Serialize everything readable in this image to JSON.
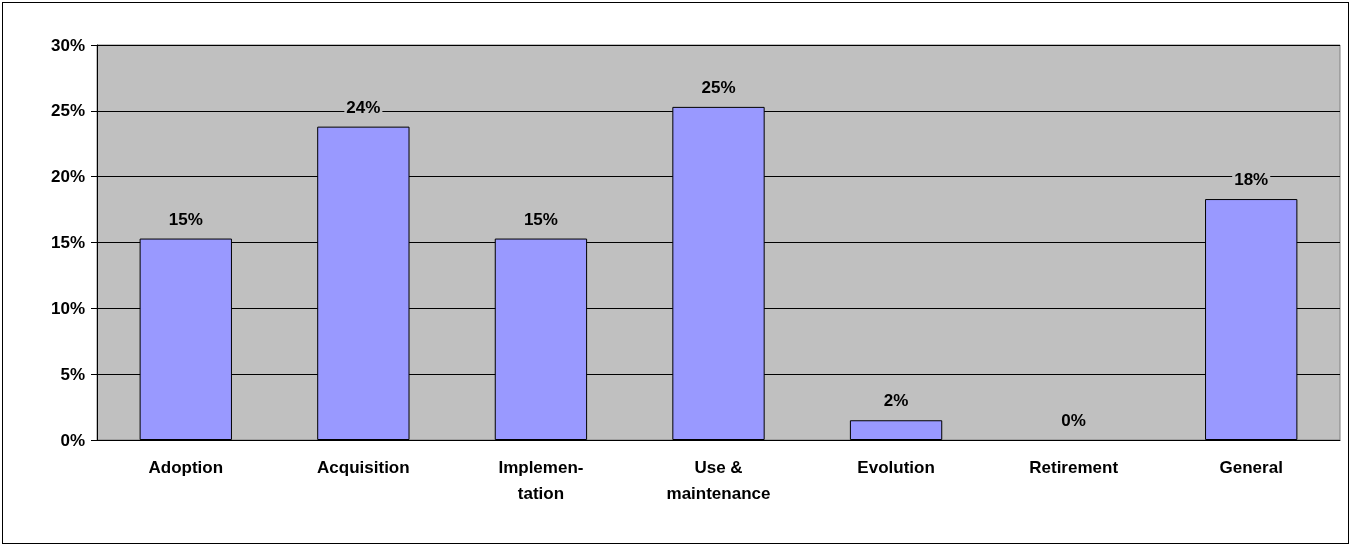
{
  "chart_data": {
    "type": "bar",
    "categories": [
      "Adoption",
      "Acquisition",
      "Implemen-\ntation",
      "Use &\nmaintenance",
      "Evolution",
      "Retirement",
      "General"
    ],
    "values": [
      15.3,
      23.8,
      15.3,
      25.3,
      1.5,
      0,
      18.3
    ],
    "value_labels": [
      "15%",
      "24%",
      "15%",
      "25%",
      "2%",
      "0%",
      "18%"
    ],
    "color": "#9999ff",
    "ylim": [
      0,
      30
    ],
    "yticks": [
      {
        "value": 0,
        "label": "0%"
      },
      {
        "value": 5,
        "label": "5%"
      },
      {
        "value": 10,
        "label": "10%"
      },
      {
        "value": 15,
        "label": "15%"
      },
      {
        "value": 20,
        "label": "20%"
      },
      {
        "value": 25,
        "label": "25%"
      },
      {
        "value": 30,
        "label": "30%"
      }
    ],
    "grid": "y"
  }
}
